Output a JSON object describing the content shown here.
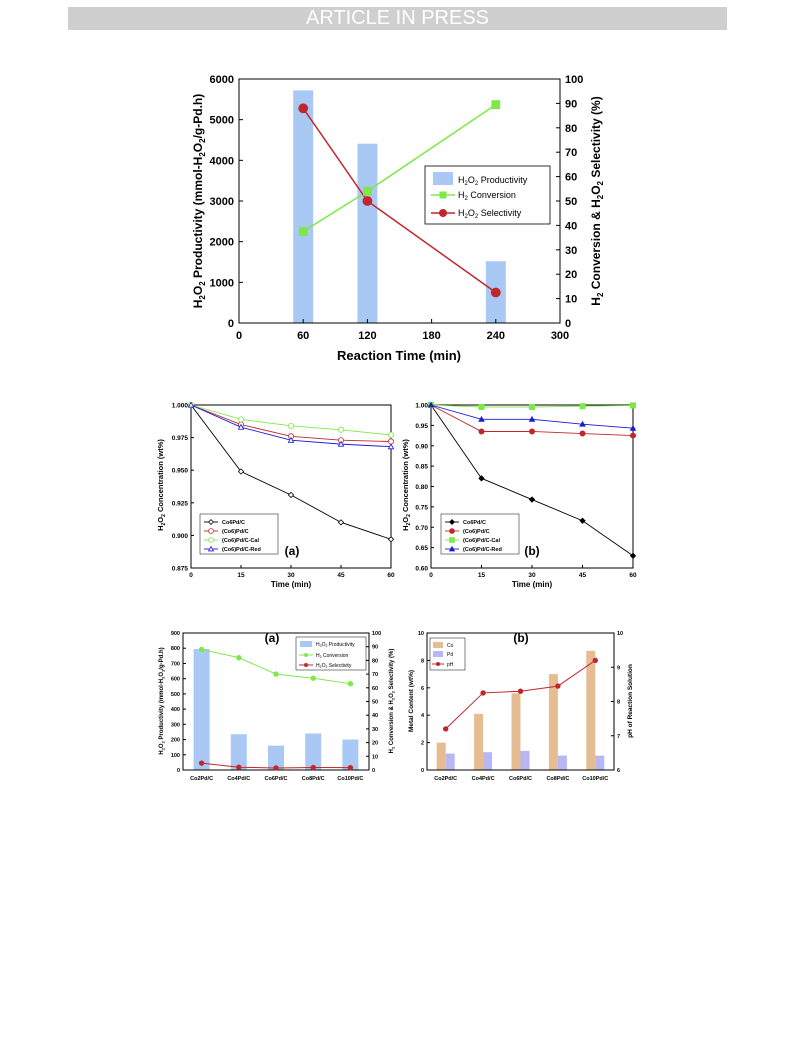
{
  "page": {
    "banner": "ARTICLE IN PRESS"
  },
  "colors": {
    "bar": "#a9c9f4",
    "green": "#7ee84a",
    "red": "#c0272d",
    "blue": "#1a1ad8",
    "tan": "#e6bc93",
    "lavender": "#b7b7f3",
    "black": "#000000"
  },
  "chart_data": [
    {
      "id": "top",
      "type": "bar+line",
      "xlabel": "Reaction Time (min)",
      "ylabel_left": "H2O2 Productivity (mmol-H2O2/g-Pd.h)",
      "ylabel_right": "H2 Conversion & H2O2 Selectivity (%)",
      "xlim": [
        0,
        300
      ],
      "xticks": [
        0,
        60,
        120,
        180,
        240,
        300
      ],
      "ylim_left": [
        0,
        6000
      ],
      "yticks_left": [
        0,
        1000,
        2000,
        3000,
        4000,
        5000,
        6000
      ],
      "ylim_right": [
        0,
        100
      ],
      "yticks_right": [
        0,
        10,
        20,
        30,
        40,
        50,
        60,
        70,
        80,
        90,
        100
      ],
      "legend": [
        "H2O2 Productivity",
        "H2 Conversion",
        "H2O2 Selectivity"
      ],
      "bars": {
        "name": "H2O2 Productivity",
        "x": [
          60,
          120,
          240
        ],
        "values": [
          5720,
          4410,
          1520
        ]
      },
      "series": [
        {
          "name": "H2 Conversion",
          "x": [
            60,
            120,
            240
          ],
          "values": [
            37.5,
            54,
            89.5
          ]
        },
        {
          "name": "H2O2 Selectivity",
          "x": [
            60,
            120,
            240
          ],
          "values": [
            88,
            50,
            12.5
          ]
        }
      ]
    },
    {
      "id": "mid-a",
      "type": "line",
      "panel_label": "(a)",
      "xlabel": "Time (min)",
      "ylabel": "H2O2 Concentration (wt%)",
      "xlim": [
        0,
        60
      ],
      "xticks": [
        0,
        15,
        30,
        45,
        60
      ],
      "ylim": [
        0.875,
        1.0
      ],
      "yticks": [
        "0.875",
        "0.900",
        "0.925",
        "0.950",
        "0.975",
        "1.000"
      ],
      "legend": [
        "Co6Pd/C",
        "(Co6)Pd/C",
        "(Co6)Pd/C-Cal",
        "(Co6)Pd/C-Red"
      ],
      "x": [
        0,
        15,
        30,
        45,
        60
      ],
      "series": [
        {
          "name": "Co6Pd/C",
          "values": [
            1.0,
            0.949,
            0.931,
            0.91,
            0.897
          ]
        },
        {
          "name": "(Co6)Pd/C",
          "values": [
            1.0,
            0.985,
            0.976,
            0.973,
            0.972
          ]
        },
        {
          "name": "(Co6)Pd/C-Cal",
          "values": [
            1.0,
            0.989,
            0.984,
            0.981,
            0.977
          ]
        },
        {
          "name": "(Co6)Pd/C-Red",
          "values": [
            1.0,
            0.983,
            0.973,
            0.97,
            0.968
          ]
        }
      ]
    },
    {
      "id": "mid-b",
      "type": "line",
      "panel_label": "(b)",
      "xlabel": "Time (min)",
      "ylabel": "H2O2 Concentration (wt%)",
      "xlim": [
        0,
        60
      ],
      "xticks": [
        0,
        15,
        30,
        45,
        60
      ],
      "ylim": [
        0.6,
        1.0
      ],
      "yticks": [
        "0.60",
        "0.65",
        "0.70",
        "0.75",
        "0.80",
        "0.85",
        "0.90",
        "0.95",
        "1.00"
      ],
      "legend": [
        "Co6Pd/C",
        "(Co6)Pd/C",
        "(Co6)Pd/C-Cal",
        "(Co6)Pd/C-Red"
      ],
      "x": [
        0,
        15,
        30,
        45,
        60
      ],
      "series": [
        {
          "name": "Co6Pd/C",
          "values": [
            1.0,
            0.82,
            0.768,
            0.716,
            0.63
          ]
        },
        {
          "name": "(Co6)Pd/C",
          "values": [
            1.0,
            0.935,
            0.935,
            0.93,
            0.925
          ]
        },
        {
          "name": "(Co6)Pd/C-Cal",
          "values": [
            1.0,
            0.995,
            0.995,
            0.997,
            0.999
          ]
        },
        {
          "name": "(Co6)Pd/C-Red",
          "values": [
            1.0,
            0.965,
            0.965,
            0.953,
            0.943
          ]
        }
      ]
    },
    {
      "id": "bot-a",
      "type": "bar+line",
      "panel_label": "(a)",
      "ylabel_left": "H2O2 Productivity (mmol-H2O2/g-Pd.h)",
      "ylabel_right": "H2 Conversion & H2O2 Selectivity (%)",
      "categories": [
        "Co2Pd/C",
        "Co4Pd/C",
        "Co6Pd/C",
        "Co8Pd/C",
        "Co10Pd/C"
      ],
      "ylim_left": [
        0,
        900
      ],
      "yticks_left": [
        0,
        100,
        200,
        300,
        400,
        500,
        600,
        700,
        800,
        900
      ],
      "ylim_right": [
        0,
        100
      ],
      "yticks_right": [
        0,
        10,
        20,
        30,
        40,
        50,
        60,
        70,
        80,
        90,
        100
      ],
      "legend": [
        "H2O2 Productivity",
        "H2 Conversion",
        "H2O2 Selectivity"
      ],
      "bars": {
        "name": "H2O2 Productivity",
        "values": [
          795,
          235,
          160,
          240,
          200
        ]
      },
      "series": [
        {
          "name": "H2 Conversion",
          "values": [
            88,
            82,
            70,
            67,
            63
          ]
        },
        {
          "name": "H2O2 Selectivity",
          "values": [
            5,
            2,
            1.5,
            1.8,
            1.7
          ]
        }
      ]
    },
    {
      "id": "bot-b",
      "type": "bar+line",
      "panel_label": "(b)",
      "ylabel_left": "Metal Content (wt%)",
      "ylabel_right": "pH of Reaction Solution",
      "categories": [
        "Co2Pd/C",
        "Co4Pd/C",
        "Co6Pd/C",
        "Co8Pd/C",
        "Co10Pd/C"
      ],
      "ylim_left": [
        0,
        10
      ],
      "yticks_left": [
        0,
        2,
        4,
        6,
        8,
        10
      ],
      "ylim_right": [
        6,
        10
      ],
      "yticks_right": [
        6,
        7,
        8,
        9,
        10
      ],
      "legend": [
        "Co",
        "Pd",
        "pH"
      ],
      "bar_series": [
        {
          "name": "Co",
          "values": [
            2.0,
            4.1,
            5.6,
            7.0,
            8.7
          ]
        },
        {
          "name": "Pd",
          "values": [
            1.2,
            1.3,
            1.4,
            1.05,
            1.05
          ]
        }
      ],
      "series": [
        {
          "name": "pH",
          "values": [
            7.2,
            8.25,
            8.3,
            8.45,
            9.2
          ]
        }
      ]
    }
  ]
}
